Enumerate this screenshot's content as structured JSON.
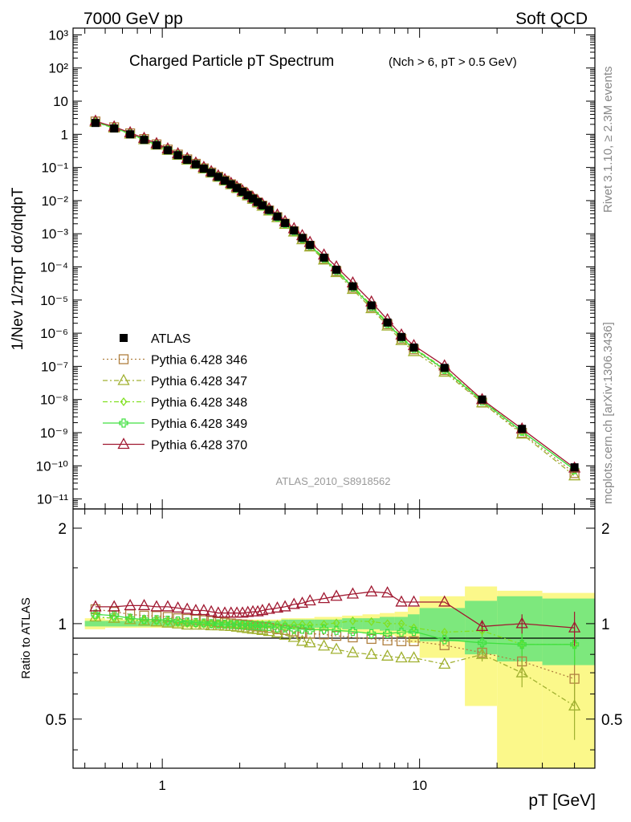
{
  "header": {
    "left": "7000 GeV pp",
    "right": "Soft QCD"
  },
  "side": {
    "rivet": "Rivet 3.1.10, ≥ 2.3M events",
    "mcplots": "mcplots.cern.ch [arXiv:1306.3436]"
  },
  "chart_data": [
    {
      "type": "line",
      "title": "Charged Particle pT Spectrum",
      "subtitle": "(Nch > 6, pT > 0.5 GeV)",
      "ylabel": "1/Nev 1/2πpT dσ/dηdpT",
      "xlabel": "pT [GeV]",
      "xscale": "log",
      "yscale": "log",
      "xlim": [
        0.45,
        48
      ],
      "ylim": [
        5e-12,
        1600.0
      ],
      "watermark": "ATLAS_2010_S8918562",
      "legend_position": "lower-left",
      "x": [
        0.55,
        0.65,
        0.75,
        0.85,
        0.95,
        1.05,
        1.15,
        1.25,
        1.35,
        1.45,
        1.55,
        1.65,
        1.75,
        1.85,
        1.95,
        2.05,
        2.15,
        2.25,
        2.35,
        2.45,
        2.6,
        2.8,
        3.0,
        3.25,
        3.5,
        3.75,
        4.25,
        4.75,
        5.5,
        6.5,
        7.5,
        8.5,
        9.5,
        12.5,
        17.5,
        25,
        40
      ],
      "series": [
        {
          "name": "ATLAS",
          "color": "#000000",
          "marker": "square-filled",
          "values": [
            2.2,
            1.5,
            1.0,
            0.68,
            0.47,
            0.33,
            0.235,
            0.17,
            0.125,
            0.092,
            0.069,
            0.052,
            0.04,
            0.031,
            0.024,
            0.0185,
            0.0145,
            0.0115,
            0.009,
            0.0072,
            0.0052,
            0.0033,
            0.0021,
            0.00125,
            0.00075,
            0.00046,
            0.00019,
            8.2e-05,
            2.6e-05,
            6.9e-06,
            2.1e-06,
            7.7e-07,
            3.7e-07,
            9e-08,
            1e-08,
            1.3e-09,
            9e-11
          ]
        },
        {
          "name": "Pythia 6.428 346",
          "color": "#b08040",
          "marker": "square-open",
          "dash": "2,3",
          "values": [
            2.44,
            1.63,
            1.07,
            0.722,
            0.497,
            0.347,
            0.245,
            0.176,
            0.129,
            0.094,
            0.0703,
            0.0526,
            0.0403,
            0.0311,
            0.0239,
            0.0184,
            0.0143,
            0.0113,
            0.00882,
            0.00702,
            0.00504,
            0.00317,
            0.002,
            0.00118,
            0.0007,
            0.00043,
            0.000176,
            7.5e-05,
            2.36e-05,
            6.18e-06,
            1.86e-06,
            6.8e-07,
            3.25e-07,
            7.7e-08,
            8.1e-09,
            9.9e-10,
            6e-11
          ]
        },
        {
          "name": "Pythia 6.428 347",
          "color": "#a0b030",
          "marker": "triangle-open",
          "dash": "6,3,2,3",
          "values": [
            2.3,
            1.55,
            1.02,
            0.69,
            0.475,
            0.33,
            0.234,
            0.168,
            0.124,
            0.091,
            0.068,
            0.0512,
            0.0393,
            0.0304,
            0.0234,
            0.0179,
            0.014,
            0.011,
            0.00862,
            0.00686,
            0.00491,
            0.00308,
            0.00193,
            0.00113,
            0.00066,
            0.0004,
            0.000162,
            6.8e-05,
            2.1e-05,
            5.5e-06,
            1.65e-06,
            6e-07,
            2.8e-07,
            6.7e-08,
            8e-09,
            9.1e-10,
            5e-11
          ]
        },
        {
          "name": "Pythia 6.428 348",
          "color": "#80e020",
          "marker": "diamond-open",
          "dash": "6,3,2,3",
          "values": [
            2.3,
            1.55,
            1.02,
            0.69,
            0.478,
            0.335,
            0.238,
            0.171,
            0.126,
            0.093,
            0.0696,
            0.0522,
            0.0401,
            0.031,
            0.0239,
            0.0184,
            0.0144,
            0.0114,
            0.00893,
            0.00713,
            0.00513,
            0.00326,
            0.00207,
            0.00124,
            0.00075,
            0.00046,
            0.00019,
            8.3e-05,
            2.65e-05,
            7e-06,
            2.1e-06,
            7.7e-07,
            3.6e-07,
            8.5e-08,
            9.5e-09,
            1.1e-09,
            7.6e-11
          ]
        },
        {
          "name": "Pythia 6.428 349",
          "color": "#40e040",
          "marker": "cross-open",
          "dash": "",
          "values": [
            2.35,
            1.58,
            1.04,
            0.7,
            0.484,
            0.338,
            0.24,
            0.172,
            0.126,
            0.093,
            0.0696,
            0.052,
            0.04,
            0.031,
            0.0238,
            0.0184,
            0.0143,
            0.0113,
            0.00882,
            0.00706,
            0.00507,
            0.0032,
            0.00203,
            0.0012,
            0.00072,
            0.00044,
            0.000182,
            7.8e-05,
            2.46e-05,
            6.4e-06,
            1.95e-06,
            7.2e-07,
            3.45e-07,
            8e-08,
            9e-09,
            1.1e-09,
            7.6e-11
          ]
        },
        {
          "name": "Pythia 6.428 370",
          "color": "#a01830",
          "marker": "triangle-open",
          "dash": "",
          "values": [
            2.5,
            1.68,
            1.12,
            0.76,
            0.526,
            0.366,
            0.26,
            0.187,
            0.137,
            0.101,
            0.0752,
            0.0562,
            0.0432,
            0.0334,
            0.0258,
            0.0199,
            0.0156,
            0.0124,
            0.00972,
            0.00785,
            0.00572,
            0.00369,
            0.00236,
            0.00143,
            0.00088,
            0.00055,
            0.00023,
            0.000101,
            3.3e-05,
            8.8e-06,
            2.55e-06,
            8.9e-07,
            4.25e-07,
            1.04e-07,
            1e-08,
            1.3e-09,
            8.6e-11
          ]
        }
      ]
    },
    {
      "type": "line",
      "ylabel": "Ratio to ATLAS",
      "xscale": "log",
      "xlim": [
        0.45,
        48
      ],
      "ylim": [
        0.35,
        2.3
      ],
      "reference_line": 1,
      "band_edges": [
        0.5,
        0.6,
        0.7,
        0.8,
        0.9,
        1.0,
        1.1,
        1.2,
        1.3,
        1.4,
        1.5,
        1.6,
        1.7,
        1.8,
        1.9,
        2.0,
        2.1,
        2.2,
        2.3,
        2.4,
        2.5,
        2.7,
        2.9,
        3.1,
        3.4,
        3.6,
        3.9,
        4.6,
        5,
        6,
        7,
        8,
        9,
        10,
        15,
        20,
        30,
        50
      ],
      "yellow_band": {
        "low": [
          0.96,
          0.97,
          0.97,
          0.97,
          0.97,
          0.97,
          0.97,
          0.97,
          0.97,
          0.97,
          0.97,
          0.97,
          0.97,
          0.97,
          0.97,
          0.97,
          0.97,
          0.97,
          0.97,
          0.97,
          0.97,
          0.97,
          0.96,
          0.96,
          0.96,
          0.96,
          0.95,
          0.95,
          0.94,
          0.93,
          0.92,
          0.91,
          0.87,
          0.78,
          0.55,
          0.35,
          0.35
        ],
        "high": [
          1.04,
          1.03,
          1.03,
          1.03,
          1.03,
          1.03,
          1.03,
          1.03,
          1.03,
          1.03,
          1.03,
          1.03,
          1.03,
          1.03,
          1.03,
          1.03,
          1.03,
          1.03,
          1.03,
          1.03,
          1.03,
          1.03,
          1.04,
          1.04,
          1.04,
          1.04,
          1.05,
          1.05,
          1.06,
          1.07,
          1.08,
          1.09,
          1.13,
          1.22,
          1.31,
          1.27,
          1.25
        ]
      },
      "green_band": {
        "low": [
          0.98,
          0.98,
          0.98,
          0.98,
          0.98,
          0.98,
          0.98,
          0.98,
          0.98,
          0.98,
          0.98,
          0.98,
          0.98,
          0.98,
          0.98,
          0.98,
          0.98,
          0.98,
          0.98,
          0.98,
          0.98,
          0.98,
          0.97,
          0.97,
          0.97,
          0.97,
          0.97,
          0.97,
          0.96,
          0.96,
          0.95,
          0.95,
          0.93,
          0.88,
          0.8,
          0.76,
          0.74
        ],
        "high": [
          1.02,
          1.02,
          1.02,
          1.02,
          1.02,
          1.02,
          1.02,
          1.02,
          1.02,
          1.02,
          1.02,
          1.02,
          1.02,
          1.02,
          1.02,
          1.02,
          1.02,
          1.02,
          1.02,
          1.02,
          1.02,
          1.02,
          1.03,
          1.03,
          1.03,
          1.03,
          1.03,
          1.03,
          1.04,
          1.04,
          1.05,
          1.05,
          1.07,
          1.12,
          1.18,
          1.22,
          1.2
        ]
      },
      "x": [
        0.55,
        0.65,
        0.75,
        0.85,
        0.95,
        1.05,
        1.15,
        1.25,
        1.35,
        1.45,
        1.55,
        1.65,
        1.75,
        1.85,
        1.95,
        2.05,
        2.15,
        2.25,
        2.35,
        2.45,
        2.6,
        2.8,
        3.0,
        3.25,
        3.5,
        3.75,
        4.25,
        4.75,
        5.5,
        6.5,
        7.5,
        8.5,
        9.5,
        12.5,
        17.5,
        25,
        40
      ],
      "series": [
        {
          "name": "Pythia 6.428 346",
          "values": [
            1.11,
            1.09,
            1.07,
            1.06,
            1.057,
            1.05,
            1.04,
            1.035,
            1.03,
            1.025,
            1.02,
            1.012,
            1.007,
            1.002,
            0.997,
            0.994,
            0.99,
            0.985,
            0.98,
            0.975,
            0.97,
            0.96,
            0.955,
            0.945,
            0.935,
            0.93,
            0.925,
            0.915,
            0.905,
            0.895,
            0.885,
            0.88,
            0.88,
            0.855,
            0.81,
            0.76,
            0.67
          ],
          "err": [
            0,
            0,
            0,
            0,
            0,
            0,
            0,
            0,
            0,
            0,
            0,
            0,
            0,
            0,
            0,
            0,
            0,
            0,
            0,
            0,
            0,
            0,
            0,
            0,
            0,
            0,
            0,
            0,
            0,
            0,
            0,
            0,
            0,
            0,
            0.04,
            0.07,
            0.12
          ]
        },
        {
          "name": "Pythia 6.428 347",
          "values": [
            1.05,
            1.04,
            1.03,
            1.02,
            1.013,
            1.005,
            0.998,
            0.99,
            0.99,
            0.99,
            0.985,
            0.985,
            0.982,
            0.98,
            0.975,
            0.97,
            0.965,
            0.96,
            0.958,
            0.952,
            0.945,
            0.935,
            0.92,
            0.905,
            0.88,
            0.87,
            0.85,
            0.83,
            0.81,
            0.8,
            0.79,
            0.78,
            0.78,
            0.745,
            0.8,
            0.7,
            0.55
          ],
          "err": [
            0,
            0,
            0,
            0,
            0,
            0,
            0,
            0,
            0,
            0,
            0,
            0,
            0,
            0,
            0,
            0,
            0,
            0,
            0,
            0,
            0,
            0,
            0,
            0,
            0,
            0,
            0,
            0,
            0,
            0,
            0,
            0,
            0,
            0,
            0.04,
            0.07,
            0.12
          ]
        },
        {
          "name": "Pythia 6.428 348",
          "values": [
            1.05,
            1.04,
            1.03,
            1.02,
            1.016,
            1.01,
            1.005,
            1.0,
            0.998,
            0.997,
            0.995,
            0.993,
            0.993,
            0.993,
            0.993,
            0.993,
            0.993,
            0.995,
            0.995,
            0.995,
            0.995,
            0.995,
            0.99,
            0.99,
            0.995,
            0.99,
            0.995,
            1.005,
            1.02,
            1.015,
            1.0,
            1.0,
            0.97,
            0.94,
            0.95,
            0.86,
            0.86
          ],
          "err": [
            0,
            0,
            0,
            0,
            0,
            0,
            0,
            0,
            0,
            0,
            0,
            0,
            0,
            0,
            0,
            0,
            0,
            0,
            0,
            0,
            0,
            0,
            0,
            0,
            0,
            0,
            0,
            0,
            0,
            0,
            0,
            0,
            0,
            0,
            0.04,
            0.07,
            0.12
          ]
        },
        {
          "name": "Pythia 6.428 349",
          "values": [
            1.07,
            1.06,
            1.04,
            1.03,
            1.03,
            1.025,
            1.02,
            1.012,
            1.008,
            1.005,
            1.0,
            0.998,
            0.996,
            0.994,
            0.992,
            0.99,
            0.988,
            0.986,
            0.984,
            0.982,
            0.98,
            0.97,
            0.97,
            0.96,
            0.96,
            0.955,
            0.96,
            0.952,
            0.945,
            0.93,
            0.93,
            0.94,
            0.945,
            0.89,
            0.87,
            0.86,
            0.86
          ],
          "err": [
            0,
            0,
            0,
            0,
            0,
            0,
            0,
            0,
            0,
            0,
            0,
            0,
            0,
            0,
            0,
            0,
            0,
            0,
            0,
            0,
            0,
            0,
            0,
            0,
            0,
            0,
            0,
            0,
            0,
            0,
            0,
            0,
            0,
            0,
            0.04,
            0.07,
            0.12
          ]
        },
        {
          "name": "Pythia 6.428 370",
          "values": [
            1.13,
            1.13,
            1.14,
            1.14,
            1.13,
            1.13,
            1.12,
            1.11,
            1.1,
            1.1,
            1.09,
            1.08,
            1.08,
            1.08,
            1.08,
            1.08,
            1.085,
            1.09,
            1.09,
            1.1,
            1.11,
            1.12,
            1.13,
            1.15,
            1.16,
            1.18,
            1.2,
            1.22,
            1.24,
            1.26,
            1.25,
            1.17,
            1.17,
            1.17,
            0.98,
            1.0,
            0.97
          ],
          "err": [
            0,
            0,
            0,
            0,
            0,
            0,
            0,
            0,
            0,
            0,
            0,
            0,
            0,
            0,
            0,
            0,
            0,
            0,
            0,
            0,
            0,
            0,
            0,
            0,
            0,
            0,
            0,
            0,
            0,
            0,
            0,
            0,
            0,
            0,
            0.04,
            0.07,
            0.12
          ]
        }
      ]
    }
  ],
  "axis_labels": {
    "top_y_ticks": [
      "10⁻¹¹",
      "10⁻¹⁰",
      "10⁻⁹",
      "10⁻⁸",
      "10⁻⁷",
      "10⁻⁶",
      "10⁻⁵",
      "10⁻⁴",
      "10⁻³",
      "10⁻²",
      "10⁻¹",
      "1",
      "10",
      "10²",
      "10³"
    ],
    "bottom_y_ticks": [
      "0.5",
      "1",
      "2"
    ],
    "x_ticks": [
      "1",
      "10"
    ]
  }
}
